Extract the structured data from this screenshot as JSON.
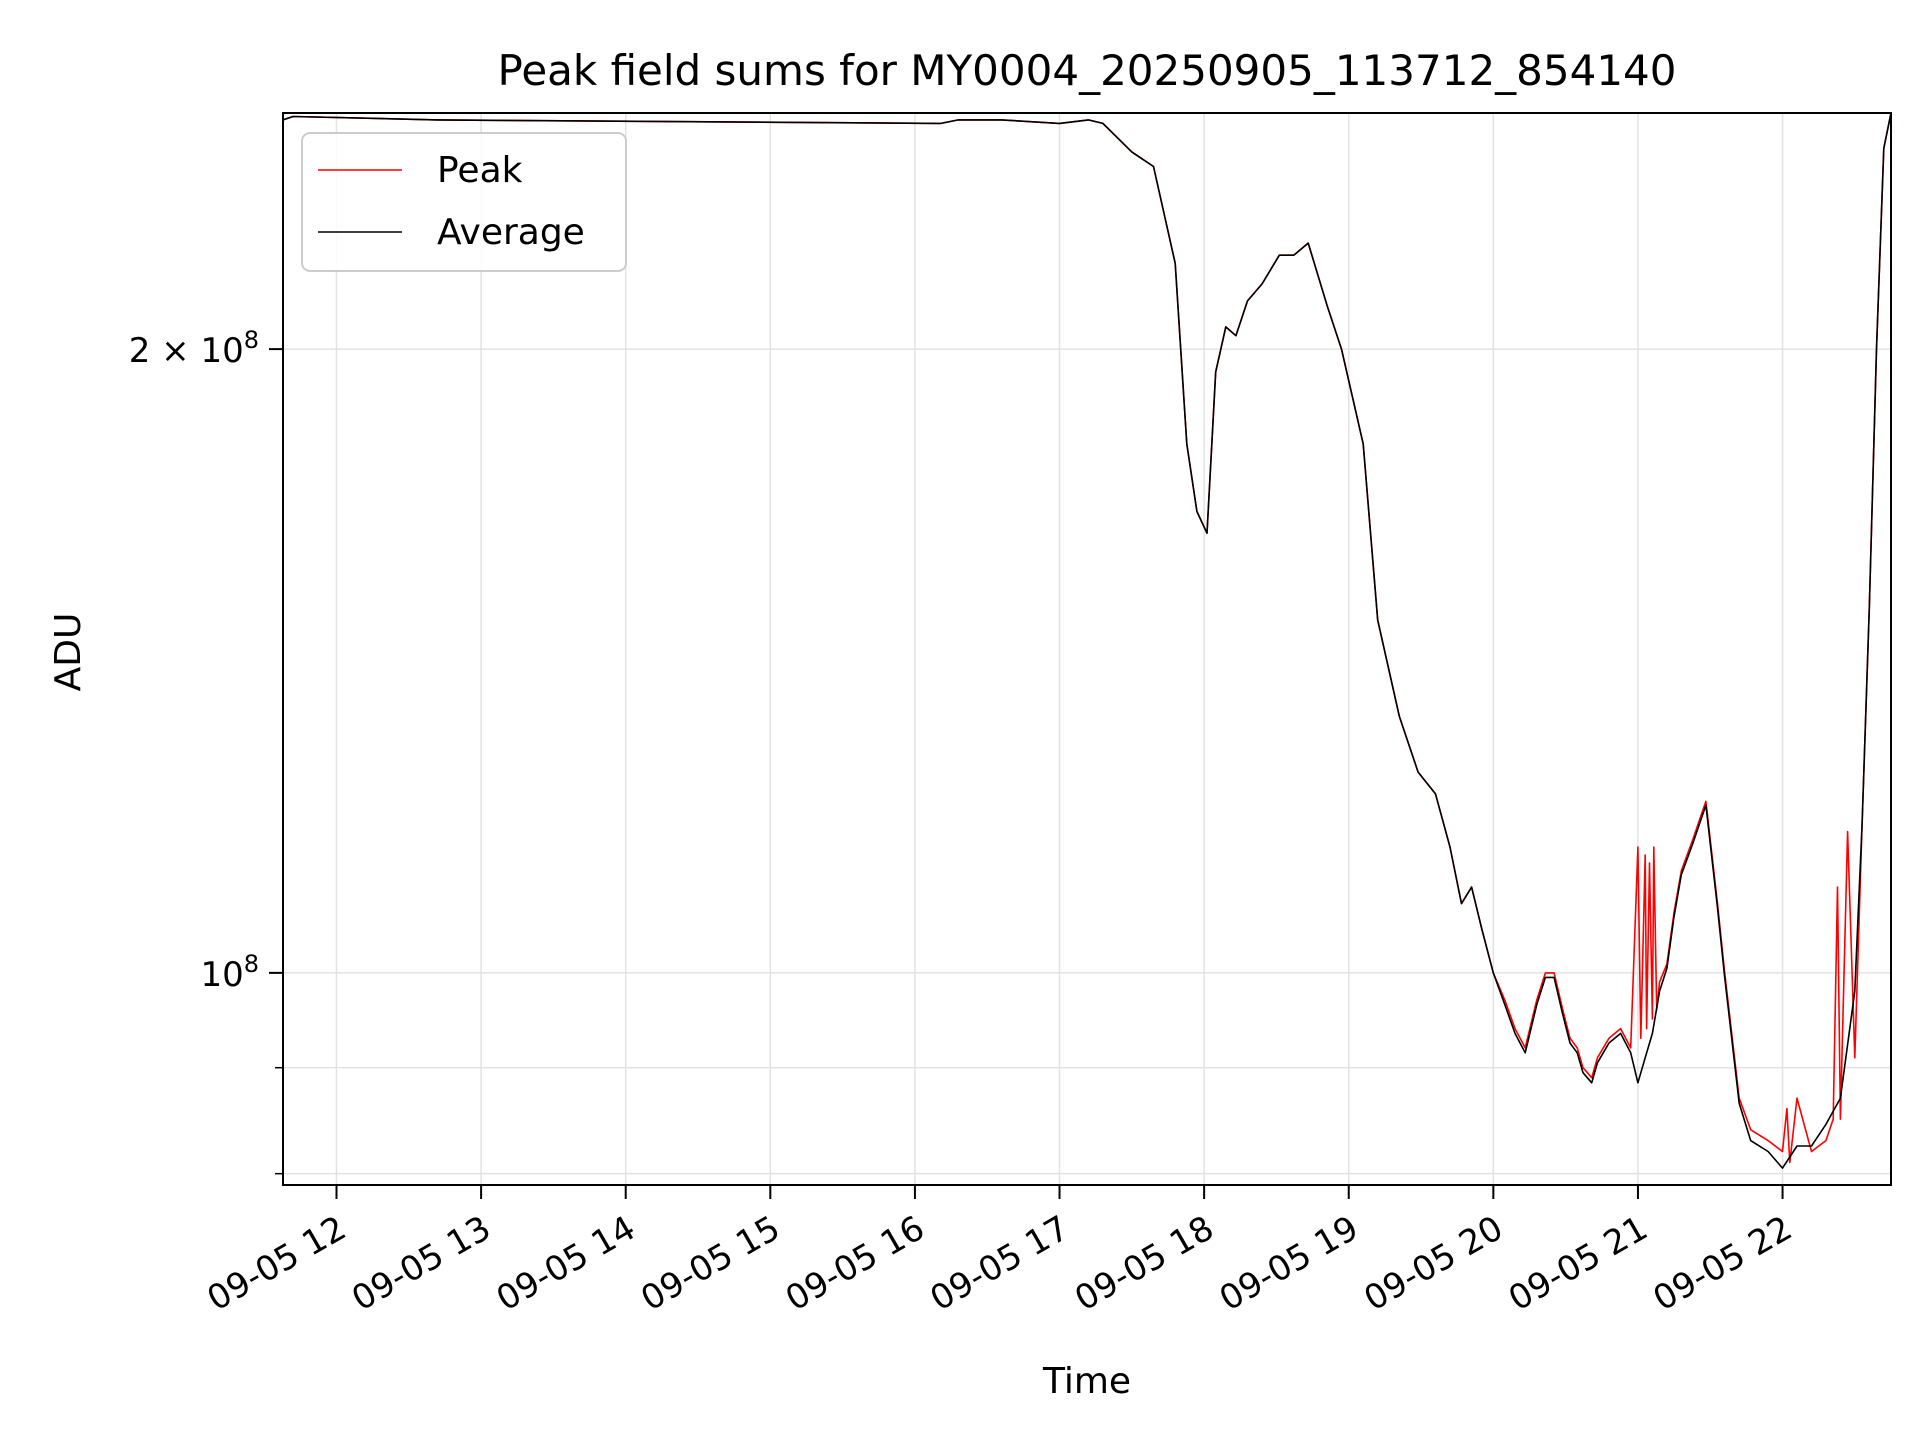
{
  "chart_data": {
    "type": "line",
    "title": "Peak field sums for MY0004_20250905_113712_854140",
    "xlabel": "Time",
    "ylabel": "ADU",
    "yscale": "log",
    "ylim": [
      79000000,
      260000000
    ],
    "xlim_hours": [
      11.63,
      22.75
    ],
    "grid": true,
    "legend_position": "top-left",
    "x_ticks": [
      {
        "hour": 12,
        "label": "09-05 12"
      },
      {
        "hour": 13,
        "label": "09-05 13"
      },
      {
        "hour": 14,
        "label": "09-05 14"
      },
      {
        "hour": 15,
        "label": "09-05 15"
      },
      {
        "hour": 16,
        "label": "09-05 16"
      },
      {
        "hour": 17,
        "label": "09-05 17"
      },
      {
        "hour": 18,
        "label": "09-05 18"
      },
      {
        "hour": 19,
        "label": "09-05 19"
      },
      {
        "hour": 20,
        "label": "09-05 20"
      },
      {
        "hour": 21,
        "label": "09-05 21"
      },
      {
        "hour": 22,
        "label": "09-05 22"
      }
    ],
    "y_major_ticks": [
      {
        "value": 100000000,
        "base": "10",
        "exp": "8"
      },
      {
        "value": 200000000,
        "base": "2 × 10",
        "exp": "8"
      }
    ],
    "y_minor_ticks": [
      80000000,
      90000000
    ],
    "series": [
      {
        "name": "Peak",
        "color": "#ff0000",
        "x": [
          11.63,
          11.7,
          12.7,
          16.18,
          16.3,
          16.6,
          17.0,
          17.2,
          17.3,
          17.5,
          17.65,
          17.8,
          17.88,
          17.95,
          18.02,
          18.08,
          18.15,
          18.22,
          18.3,
          18.4,
          18.52,
          18.62,
          18.72,
          18.85,
          18.95,
          19.1,
          19.2,
          19.35,
          19.48,
          19.6,
          19.7,
          19.78,
          19.85,
          19.92,
          20.0,
          20.08,
          20.15,
          20.22,
          20.3,
          20.36,
          20.42,
          20.48,
          20.53,
          20.58,
          20.62,
          20.68,
          20.72,
          20.8,
          20.88,
          20.95,
          21.0,
          21.02,
          21.05,
          21.06,
          21.08,
          21.1,
          21.11,
          21.13,
          21.15,
          21.2,
          21.25,
          21.3,
          21.38,
          21.47,
          21.55,
          21.6,
          21.7,
          21.78,
          21.9,
          22.0,
          22.03,
          22.05,
          22.1,
          22.2,
          22.3,
          22.35,
          22.38,
          22.4,
          22.45,
          22.5,
          22.55,
          22.6,
          22.65,
          22.7,
          22.75
        ],
        "y": [
          258000000,
          259000000,
          258000000,
          257000000,
          258000000,
          258000000,
          257000000,
          258000000,
          257000000,
          249000000,
          245000000,
          220000000,
          180000000,
          167000000,
          163000000,
          195000000,
          205000000,
          203000000,
          211000000,
          215000000,
          222000000,
          222000000,
          225000000,
          210000000,
          200000000,
          180000000,
          148000000,
          133000000,
          125000000,
          122000000,
          115000000,
          108000000,
          110000000,
          105000000,
          100000000,
          97000000,
          94000000,
          92000000,
          97000000,
          100000000,
          100000000,
          96000000,
          93000000,
          92000000,
          90000000,
          89000000,
          91000000,
          93000000,
          94000000,
          92000000,
          115000000,
          93000000,
          114000000,
          94000000,
          113000000,
          95000000,
          115000000,
          96000000,
          99000000,
          101000000,
          107000000,
          112000000,
          116000000,
          121000000,
          108000000,
          100000000,
          87000000,
          84000000,
          83000000,
          82000000,
          86000000,
          81000000,
          87000000,
          82000000,
          83000000,
          85000000,
          110000000,
          85000000,
          117000000,
          91000000,
          118000000,
          150000000,
          200000000,
          250000000,
          260000000
        ]
      },
      {
        "name": "Average",
        "color": "#000000",
        "x": [
          11.63,
          11.7,
          12.7,
          16.18,
          16.3,
          16.6,
          17.0,
          17.2,
          17.3,
          17.5,
          17.65,
          17.8,
          17.88,
          17.95,
          18.02,
          18.08,
          18.15,
          18.22,
          18.3,
          18.4,
          18.52,
          18.62,
          18.72,
          18.85,
          18.95,
          19.1,
          19.2,
          19.35,
          19.48,
          19.6,
          19.7,
          19.78,
          19.85,
          19.92,
          20.0,
          20.08,
          20.15,
          20.22,
          20.3,
          20.36,
          20.42,
          20.48,
          20.53,
          20.58,
          20.62,
          20.68,
          20.72,
          20.8,
          20.88,
          20.95,
          21.0,
          21.05,
          21.1,
          21.15,
          21.2,
          21.25,
          21.3,
          21.38,
          21.47,
          21.55,
          21.6,
          21.7,
          21.78,
          21.9,
          22.0,
          22.05,
          22.1,
          22.2,
          22.3,
          22.4,
          22.5,
          22.55,
          22.6,
          22.65,
          22.7,
          22.75
        ],
        "y": [
          258000000,
          259000000,
          258000000,
          257000000,
          258000000,
          258000000,
          257000000,
          258000000,
          257000000,
          249000000,
          245000000,
          220000000,
          180000000,
          167000000,
          163000000,
          195000000,
          205000000,
          203000000,
          211000000,
          215000000,
          222000000,
          222000000,
          225000000,
          210000000,
          200000000,
          180000000,
          148000000,
          133000000,
          125000000,
          122000000,
          115000000,
          108000000,
          110000000,
          105000000,
          100000000,
          96500000,
          93500000,
          91500000,
          96500000,
          99500000,
          99500000,
          95500000,
          92500000,
          91500000,
          89500000,
          88500000,
          90500000,
          92500000,
          93500000,
          91500000,
          88500000,
          91000000,
          93500000,
          98000000,
          100500000,
          106500000,
          111500000,
          115500000,
          120500000,
          107500000,
          99500000,
          86500000,
          83000000,
          82000000,
          80500000,
          81500000,
          82500000,
          82500000,
          84500000,
          87000000,
          98000000,
          118000000,
          150000000,
          200000000,
          250000000,
          260000000
        ]
      }
    ]
  }
}
